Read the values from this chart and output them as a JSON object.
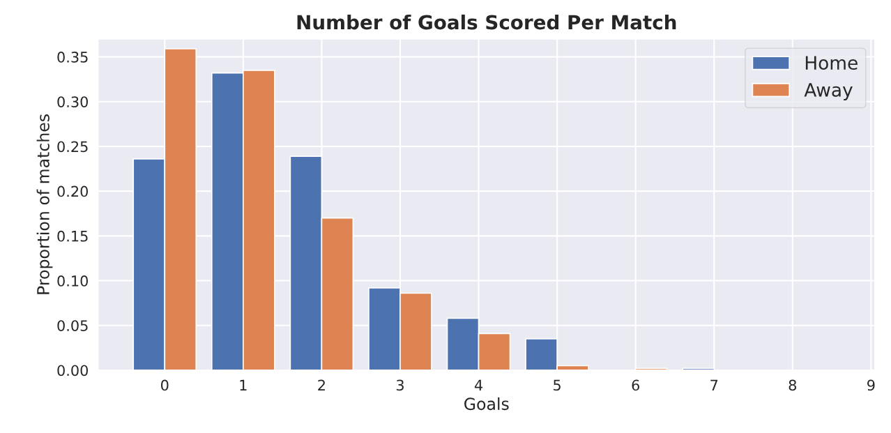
{
  "chart_data": {
    "type": "bar",
    "title": "Number of Goals Scored Per Match",
    "xlabel": "Goals",
    "ylabel": "Proportion of matches",
    "x": [
      0,
      1,
      2,
      3,
      4,
      5,
      6,
      7
    ],
    "series": [
      {
        "name": "Home",
        "color": "#4c72b0",
        "values": [
          0.236,
          0.332,
          0.239,
          0.092,
          0.058,
          0.035,
          null,
          0.002
        ]
      },
      {
        "name": "Away",
        "color": "#dd8452",
        "values": [
          0.359,
          0.335,
          0.17,
          0.086,
          0.041,
          0.005,
          0.002,
          null
        ]
      }
    ],
    "xlim": [
      -0.85,
      9.05
    ],
    "xticks": [
      0,
      1,
      2,
      3,
      4,
      5,
      6,
      7,
      8,
      9
    ],
    "ylim": [
      0,
      0.37
    ],
    "yticks": [
      {
        "value": 0,
        "label": "0.00"
      },
      {
        "value": 0.05,
        "label": "0.05"
      },
      {
        "value": 0.1,
        "label": "0.10"
      },
      {
        "value": 0.15,
        "label": "0.15"
      },
      {
        "value": 0.2,
        "label": "0.20"
      },
      {
        "value": 0.25,
        "label": "0.25"
      },
      {
        "value": 0.3,
        "label": "0.30"
      },
      {
        "value": 0.35,
        "label": "0.35"
      }
    ],
    "grid": true,
    "legend": "top right"
  }
}
